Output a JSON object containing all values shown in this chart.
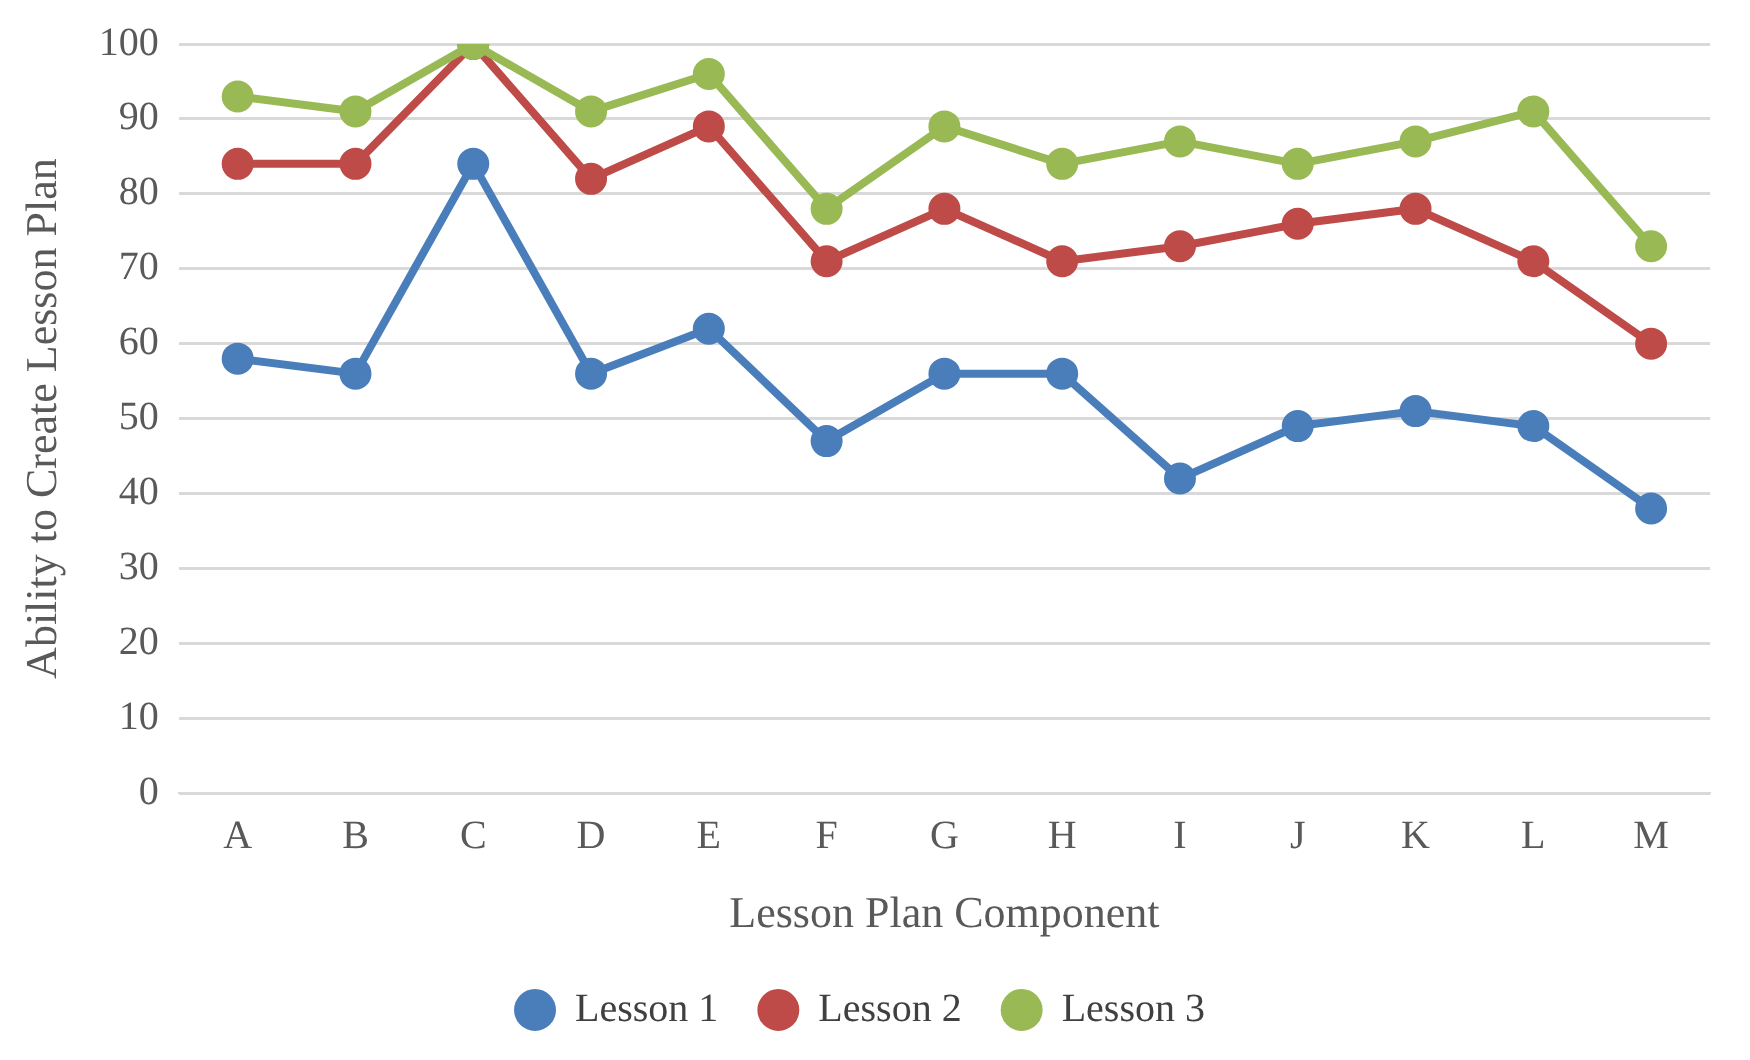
{
  "chart_data": {
    "type": "line",
    "xlabel": "Lesson Plan Component",
    "ylabel": "Ability to Create Lesson Plan",
    "categories": [
      "A",
      "B",
      "C",
      "D",
      "E",
      "F",
      "G",
      "H",
      "I",
      "J",
      "K",
      "L",
      "M"
    ],
    "series": [
      {
        "name": "Lesson 1",
        "color": "#4a7ebb",
        "values": [
          58,
          56,
          84,
          56,
          62,
          47,
          56,
          56,
          42,
          49,
          51,
          49,
          38
        ]
      },
      {
        "name": "Lesson 2",
        "color": "#be4b48",
        "values": [
          84,
          84,
          100,
          82,
          89,
          71,
          78,
          71,
          73,
          76,
          78,
          71,
          60
        ]
      },
      {
        "name": "Lesson 3",
        "color": "#98b954",
        "values": [
          93,
          91,
          100,
          91,
          96,
          78,
          89,
          84,
          87,
          84,
          87,
          91,
          73
        ]
      }
    ],
    "ylim": [
      0,
      100
    ],
    "yticks": [
      0,
      10,
      20,
      30,
      40,
      50,
      60,
      70,
      80,
      90,
      100
    ],
    "grid": "y",
    "legend": "bottom",
    "marker": "circle",
    "line_style": "solid"
  }
}
